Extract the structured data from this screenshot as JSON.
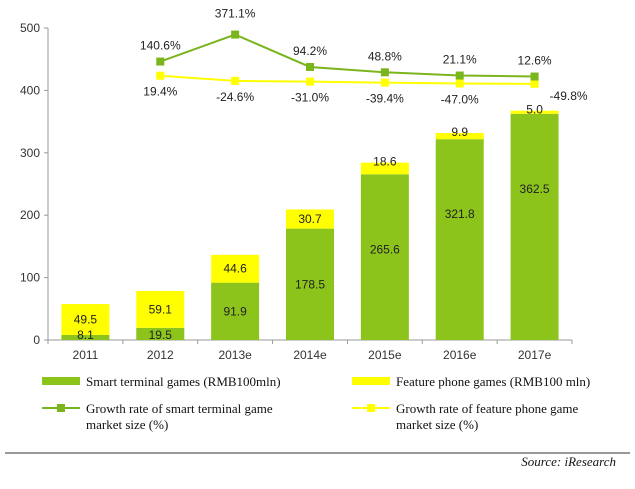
{
  "chart_data": {
    "type": "bar",
    "categories": [
      "2011",
      "2012",
      "2013e",
      "2014e",
      "2015e",
      "2016e",
      "2017e"
    ],
    "y_ticks": [
      "0",
      "100",
      "200",
      "300",
      "400",
      "500"
    ],
    "ylim": [
      0,
      500
    ],
    "stacked": true,
    "grid": false,
    "legend_position": "bottom",
    "source": "Source: iResearch",
    "series": [
      {
        "name": "Smart terminal games (RMB100mln)",
        "type": "bar",
        "color": "#8CC41C",
        "values": [
          8.1,
          19.5,
          91.9,
          178.5,
          265.6,
          321.8,
          362.5
        ],
        "labels": [
          "8.1",
          "19.5",
          "91.9",
          "178.5",
          "265.6",
          "321.8",
          "362.5"
        ]
      },
      {
        "name": "Feature phone games (RMB100 mln)",
        "type": "bar",
        "color": "#FFFF00",
        "values": [
          49.5,
          59.1,
          44.6,
          30.7,
          18.6,
          9.9,
          5.0
        ],
        "labels": [
          "49.5",
          "59.1",
          "44.6",
          "30.7",
          "18.6",
          "9.9",
          "5.0"
        ]
      },
      {
        "name": "Growth rate of smart terminal game market size (%)",
        "legend_lines": [
          "Growth rate of smart terminal game",
          "market size (%)"
        ],
        "type": "line",
        "color": "#7AB51D",
        "values": [
          null,
          140.6,
          371.1,
          94.2,
          48.8,
          21.1,
          12.6
        ],
        "labels": [
          "",
          "140.6%",
          "371.1%",
          "94.2%",
          "48.8%",
          "21.1%",
          "12.6%"
        ]
      },
      {
        "name": "Growth rate of feature phone game market size (%)",
        "legend_lines": [
          "Growth rate of feature phone game",
          "market size (%)"
        ],
        "type": "line",
        "color": "#FFFF00",
        "values": [
          null,
          19.4,
          -24.6,
          -31.0,
          -39.4,
          -47.0,
          -49.8
        ],
        "labels": [
          "",
          "19.4%",
          "-24.6%",
          "-31.0%",
          "-39.4%",
          "-47.0%",
          "-49.8%"
        ]
      }
    ]
  }
}
